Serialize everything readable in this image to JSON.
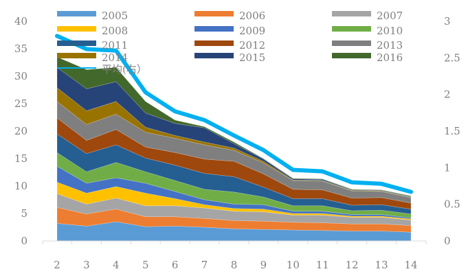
{
  "chart_data": {
    "type": "area",
    "stacked": true,
    "x": [
      2,
      3,
      4,
      5,
      6,
      7,
      8,
      9,
      10,
      11,
      12,
      13,
      14
    ],
    "left_axis": {
      "ylim": [
        0,
        40
      ],
      "ticks": [
        0,
        5,
        10,
        15,
        20,
        25,
        30,
        35,
        40
      ]
    },
    "right_axis": {
      "ylim": [
        0,
        3
      ],
      "ticks": [
        "0",
        "0.5",
        "1",
        "1.5",
        "2",
        "2.5",
        "3"
      ],
      "tick_values": [
        0,
        0.5,
        1,
        1.5,
        2,
        2.5,
        3
      ]
    },
    "grid": false,
    "legend_placement": "top",
    "series": [
      {
        "name": "2005",
        "color": "#5B9BD5",
        "values": [
          3.2,
          2.7,
          3.5,
          2.6,
          2.7,
          2.5,
          2.2,
          2.1,
          2.0,
          1.9,
          1.8,
          1.8,
          1.6
        ]
      },
      {
        "name": "2006",
        "color": "#ED7D31",
        "values": [
          2.9,
          2.2,
          2.3,
          1.8,
          1.7,
          1.6,
          1.5,
          1.5,
          1.4,
          1.4,
          1.3,
          1.3,
          1.2
        ]
      },
      {
        "name": "2007",
        "color": "#A5A5A5",
        "values": [
          2.5,
          1.8,
          2.0,
          2.0,
          2.0,
          1.9,
          1.7,
          1.7,
          1.3,
          1.4,
          1.2,
          1.2,
          1.0
        ]
      },
      {
        "name": "2008",
        "color": "#FFC000",
        "values": [
          2.1,
          2.0,
          2.1,
          2.3,
          1.3,
          0.6,
          0.5,
          0.5,
          0.3,
          0.3,
          0.2,
          0.2,
          0.2
        ]
      },
      {
        "name": "2009",
        "color": "#4472C4",
        "values": [
          2.9,
          1.8,
          1.6,
          1.8,
          1.3,
          0.9,
          0.8,
          0.8,
          0.4,
          0.4,
          0.3,
          0.3,
          0.2
        ]
      },
      {
        "name": "2010",
        "color": "#70AD47",
        "values": [
          2.5,
          2.1,
          2.8,
          2.1,
          2.0,
          1.9,
          2.2,
          1.4,
          1.0,
          1.0,
          0.7,
          0.8,
          0.7
        ]
      },
      {
        "name": "2011",
        "color": "#255E91",
        "values": [
          3.4,
          3.3,
          3.2,
          2.5,
          2.8,
          2.9,
          2.8,
          1.8,
          1.3,
          1.3,
          1.0,
          1.0,
          0.9
        ]
      },
      {
        "name": "2012",
        "color": "#9E480E",
        "values": [
          2.9,
          2.4,
          2.8,
          2.0,
          2.3,
          2.6,
          2.8,
          2.4,
          1.7,
          1.6,
          1.3,
          1.3,
          1.1
        ]
      },
      {
        "name": "2013",
        "color": "#7F7F7F",
        "values": [
          3.0,
          2.9,
          2.8,
          2.7,
          2.6,
          2.6,
          2.0,
          2.0,
          1.6,
          1.6,
          1.3,
          1.1,
          1.0
        ]
      },
      {
        "name": "2014",
        "color": "#997300",
        "values": [
          2.5,
          2.5,
          2.3,
          0.9,
          0.5,
          0.5,
          0.4,
          0.3,
          0.1,
          0.1,
          0.1,
          0.1,
          0.1
        ]
      },
      {
        "name": "2015",
        "color": "#264478",
        "values": [
          3.7,
          4.0,
          3.6,
          2.6,
          2.2,
          2.6,
          0.8,
          0.4,
          0.2,
          0.2,
          0.1,
          0.1,
          0.1
        ]
      },
      {
        "name": "2016",
        "color": "#43682B",
        "values": [
          1.9,
          3.5,
          2.6,
          2.1,
          0.6,
          0.2,
          0.3,
          0.1,
          0.1,
          0.1,
          0.1,
          0.1,
          0.1
        ]
      }
    ],
    "line_series": {
      "name": "平均(右）",
      "color": "#00B0F0",
      "axis": "right",
      "values": [
        2.8,
        2.62,
        2.6,
        2.03,
        1.77,
        1.65,
        1.44,
        1.24,
        0.97,
        0.95,
        0.8,
        0.78,
        0.67
      ]
    }
  }
}
